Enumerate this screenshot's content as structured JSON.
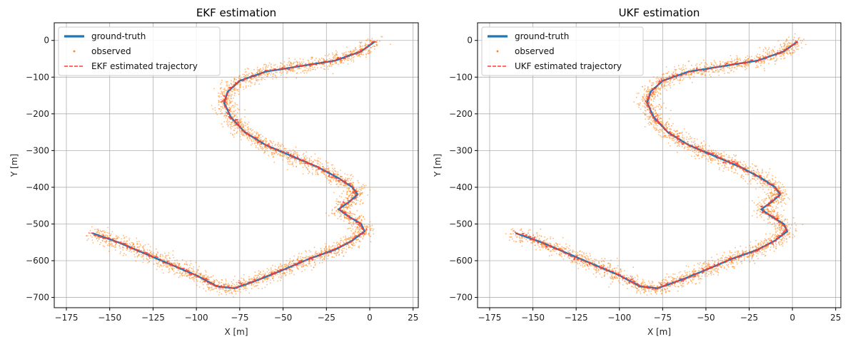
{
  "chart_data": [
    {
      "type": "line",
      "title": "EKF estimation",
      "xlabel": "X [m]",
      "ylabel": "Y [m]",
      "xlim": [
        -182,
        28
      ],
      "ylim": [
        -728,
        48
      ],
      "xticks": [
        -175,
        -150,
        -125,
        -100,
        -75,
        -50,
        -25,
        0,
        25
      ],
      "yticks": [
        0,
        -100,
        -200,
        -300,
        -400,
        -500,
        -600,
        -700
      ],
      "grid": true,
      "legend_position": "upper-left",
      "series": [
        {
          "name": "ground-truth",
          "kind": "line",
          "color": "#1f77b4"
        },
        {
          "name": "observed",
          "kind": "scatter",
          "color": "#ff7f0e"
        },
        {
          "name": "EKF estimated trajectory",
          "kind": "dashed-line",
          "color": "#ff3b30"
        }
      ]
    },
    {
      "type": "line",
      "title": "UKF estimation",
      "xlabel": "X [m]",
      "ylabel": "Y [m]",
      "xlim": [
        -182,
        28
      ],
      "ylim": [
        -728,
        48
      ],
      "xticks": [
        -175,
        -150,
        -125,
        -100,
        -75,
        -50,
        -25,
        0,
        25
      ],
      "yticks": [
        0,
        -100,
        -200,
        -300,
        -400,
        -500,
        -600,
        -700
      ],
      "grid": true,
      "legend_position": "upper-left",
      "series": [
        {
          "name": "ground-truth",
          "kind": "line",
          "color": "#1f77b4"
        },
        {
          "name": "observed",
          "kind": "scatter",
          "color": "#ff7f0e"
        },
        {
          "name": "UKF estimated trajectory",
          "kind": "dashed-line",
          "color": "#ff3b30"
        }
      ]
    }
  ],
  "trajectory": {
    "x": [
      3,
      -5,
      -20,
      -40,
      -60,
      -75,
      -82,
      -84,
      -80,
      -72,
      -60,
      -45,
      -30,
      -18,
      -10,
      -7,
      -12,
      -18,
      -12,
      -5,
      -3,
      -10,
      -20,
      -35,
      -50,
      -62,
      -70,
      -78,
      -88,
      -100,
      -115,
      -130,
      -145,
      -160
    ],
    "y": [
      -3,
      -30,
      -55,
      -70,
      -85,
      -110,
      -140,
      -170,
      -210,
      -250,
      -285,
      -315,
      -345,
      -375,
      -400,
      -420,
      -440,
      -460,
      -480,
      -500,
      -520,
      -545,
      -570,
      -595,
      -625,
      -648,
      -662,
      -675,
      -670,
      -640,
      -610,
      -580,
      -550,
      -525
    ]
  }
}
